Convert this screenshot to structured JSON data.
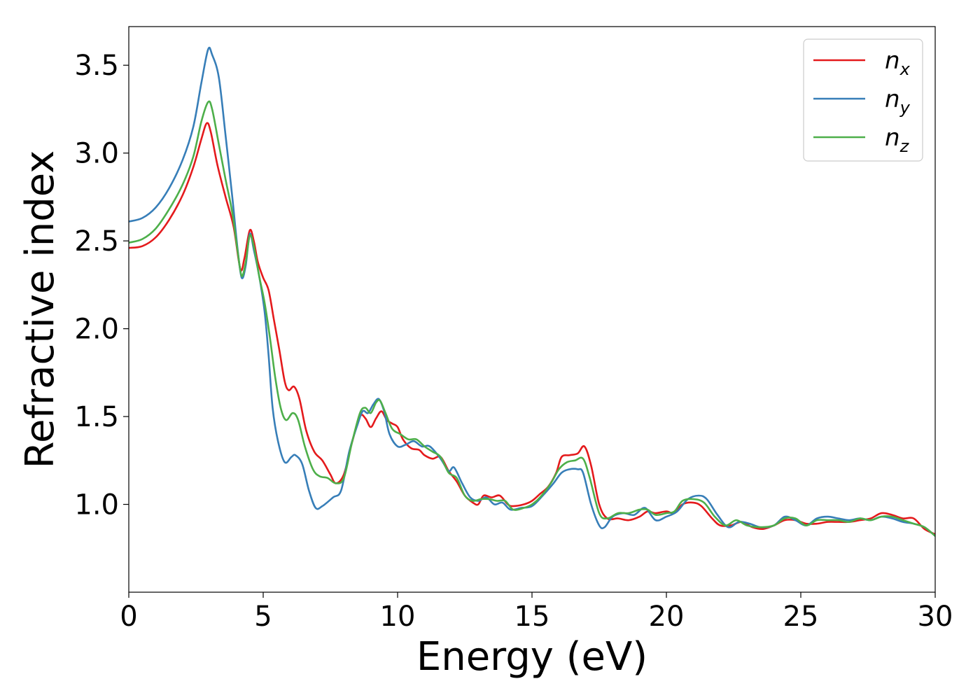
{
  "chart_data": {
    "type": "line",
    "title": "",
    "xlabel": "Energy (eV)",
    "ylabel": "Refractive index",
    "xlim": [
      0,
      30
    ],
    "ylim": [
      0.5,
      3.72
    ],
    "xticks": [
      0,
      5,
      10,
      15,
      20,
      25,
      30
    ],
    "yticks": [
      1.0,
      1.5,
      2.0,
      2.5,
      3.0,
      3.5
    ],
    "grid": false,
    "legend_position": "top-right",
    "series": [
      {
        "name": "n",
        "subscript": "x",
        "color": "#e41a1c",
        "points": [
          [
            0,
            2.46
          ],
          [
            0.5,
            2.47
          ],
          [
            1.0,
            2.52
          ],
          [
            1.5,
            2.62
          ],
          [
            2.0,
            2.76
          ],
          [
            2.4,
            2.92
          ],
          [
            2.7,
            3.08
          ],
          [
            2.9,
            3.17
          ],
          [
            3.05,
            3.12
          ],
          [
            3.3,
            2.93
          ],
          [
            3.6,
            2.75
          ],
          [
            3.9,
            2.58
          ],
          [
            4.15,
            2.34
          ],
          [
            4.3,
            2.4
          ],
          [
            4.5,
            2.56
          ],
          [
            4.65,
            2.5
          ],
          [
            4.8,
            2.38
          ],
          [
            5.0,
            2.29
          ],
          [
            5.2,
            2.22
          ],
          [
            5.4,
            2.05
          ],
          [
            5.6,
            1.88
          ],
          [
            5.8,
            1.7
          ],
          [
            5.95,
            1.65
          ],
          [
            6.15,
            1.67
          ],
          [
            6.35,
            1.6
          ],
          [
            6.6,
            1.42
          ],
          [
            6.9,
            1.3
          ],
          [
            7.2,
            1.25
          ],
          [
            7.5,
            1.17
          ],
          [
            7.7,
            1.12
          ],
          [
            8.0,
            1.17
          ],
          [
            8.3,
            1.35
          ],
          [
            8.6,
            1.5
          ],
          [
            8.8,
            1.49
          ],
          [
            9.0,
            1.44
          ],
          [
            9.2,
            1.49
          ],
          [
            9.4,
            1.53
          ],
          [
            9.6,
            1.48
          ],
          [
            9.8,
            1.46
          ],
          [
            10.0,
            1.44
          ],
          [
            10.2,
            1.37
          ],
          [
            10.5,
            1.32
          ],
          [
            10.8,
            1.31
          ],
          [
            11.0,
            1.28
          ],
          [
            11.3,
            1.26
          ],
          [
            11.6,
            1.27
          ],
          [
            11.9,
            1.19
          ],
          [
            12.2,
            1.13
          ],
          [
            12.5,
            1.05
          ],
          [
            12.8,
            1.01
          ],
          [
            13.0,
            1.0
          ],
          [
            13.2,
            1.05
          ],
          [
            13.5,
            1.04
          ],
          [
            13.8,
            1.05
          ],
          [
            14.1,
            1.0
          ],
          [
            14.3,
            0.99
          ],
          [
            14.7,
            1.0
          ],
          [
            15.0,
            1.02
          ],
          [
            15.3,
            1.06
          ],
          [
            15.6,
            1.1
          ],
          [
            15.9,
            1.18
          ],
          [
            16.1,
            1.27
          ],
          [
            16.4,
            1.28
          ],
          [
            16.7,
            1.29
          ],
          [
            16.95,
            1.33
          ],
          [
            17.2,
            1.22
          ],
          [
            17.5,
            1.0
          ],
          [
            17.8,
            0.92
          ],
          [
            18.2,
            0.92
          ],
          [
            18.6,
            0.91
          ],
          [
            19.0,
            0.93
          ],
          [
            19.3,
            0.96
          ],
          [
            19.6,
            0.95
          ],
          [
            20.0,
            0.96
          ],
          [
            20.3,
            0.95
          ],
          [
            20.6,
            1.0
          ],
          [
            21.0,
            1.01
          ],
          [
            21.3,
            0.99
          ],
          [
            21.7,
            0.92
          ],
          [
            22.0,
            0.88
          ],
          [
            22.4,
            0.88
          ],
          [
            22.8,
            0.9
          ],
          [
            23.2,
            0.87
          ],
          [
            23.6,
            0.86
          ],
          [
            24.0,
            0.88
          ],
          [
            24.4,
            0.91
          ],
          [
            24.8,
            0.91
          ],
          [
            25.2,
            0.89
          ],
          [
            25.6,
            0.89
          ],
          [
            26.0,
            0.9
          ],
          [
            26.4,
            0.9
          ],
          [
            26.8,
            0.9
          ],
          [
            27.2,
            0.91
          ],
          [
            27.6,
            0.92
          ],
          [
            28.0,
            0.95
          ],
          [
            28.4,
            0.94
          ],
          [
            28.8,
            0.92
          ],
          [
            29.2,
            0.92
          ],
          [
            29.6,
            0.86
          ],
          [
            30.0,
            0.83
          ]
        ]
      },
      {
        "name": "n",
        "subscript": "y",
        "color": "#377eb8",
        "points": [
          [
            0,
            2.61
          ],
          [
            0.5,
            2.63
          ],
          [
            1.0,
            2.69
          ],
          [
            1.5,
            2.8
          ],
          [
            2.0,
            2.96
          ],
          [
            2.4,
            3.15
          ],
          [
            2.7,
            3.4
          ],
          [
            2.95,
            3.59
          ],
          [
            3.1,
            3.56
          ],
          [
            3.35,
            3.43
          ],
          [
            3.6,
            3.1
          ],
          [
            3.85,
            2.75
          ],
          [
            4.05,
            2.45
          ],
          [
            4.2,
            2.29
          ],
          [
            4.35,
            2.36
          ],
          [
            4.5,
            2.54
          ],
          [
            4.65,
            2.45
          ],
          [
            4.85,
            2.3
          ],
          [
            5.05,
            2.1
          ],
          [
            5.2,
            1.85
          ],
          [
            5.35,
            1.55
          ],
          [
            5.55,
            1.36
          ],
          [
            5.8,
            1.24
          ],
          [
            6.05,
            1.27
          ],
          [
            6.2,
            1.28
          ],
          [
            6.45,
            1.23
          ],
          [
            6.7,
            1.08
          ],
          [
            6.95,
            0.98
          ],
          [
            7.2,
            0.99
          ],
          [
            7.6,
            1.04
          ],
          [
            7.9,
            1.08
          ],
          [
            8.2,
            1.3
          ],
          [
            8.5,
            1.45
          ],
          [
            8.7,
            1.53
          ],
          [
            8.9,
            1.52
          ],
          [
            9.1,
            1.57
          ],
          [
            9.3,
            1.6
          ],
          [
            9.5,
            1.53
          ],
          [
            9.7,
            1.4
          ],
          [
            10.0,
            1.33
          ],
          [
            10.3,
            1.34
          ],
          [
            10.6,
            1.36
          ],
          [
            10.9,
            1.33
          ],
          [
            11.2,
            1.33
          ],
          [
            11.6,
            1.26
          ],
          [
            11.9,
            1.19
          ],
          [
            12.1,
            1.21
          ],
          [
            12.4,
            1.12
          ],
          [
            12.7,
            1.04
          ],
          [
            13.0,
            1.02
          ],
          [
            13.3,
            1.04
          ],
          [
            13.6,
            1.0
          ],
          [
            13.9,
            1.01
          ],
          [
            14.2,
            0.97
          ],
          [
            14.6,
            0.98
          ],
          [
            15.0,
            0.99
          ],
          [
            15.4,
            1.05
          ],
          [
            15.8,
            1.12
          ],
          [
            16.1,
            1.18
          ],
          [
            16.4,
            1.2
          ],
          [
            16.7,
            1.2
          ],
          [
            16.9,
            1.18
          ],
          [
            17.2,
            1.0
          ],
          [
            17.5,
            0.88
          ],
          [
            17.7,
            0.87
          ],
          [
            18.0,
            0.93
          ],
          [
            18.4,
            0.95
          ],
          [
            18.8,
            0.94
          ],
          [
            19.2,
            0.98
          ],
          [
            19.6,
            0.91
          ],
          [
            20.0,
            0.93
          ],
          [
            20.4,
            0.96
          ],
          [
            20.8,
            1.03
          ],
          [
            21.2,
            1.05
          ],
          [
            21.5,
            1.03
          ],
          [
            21.9,
            0.94
          ],
          [
            22.3,
            0.87
          ],
          [
            22.7,
            0.9
          ],
          [
            23.1,
            0.89
          ],
          [
            23.5,
            0.87
          ],
          [
            24.0,
            0.88
          ],
          [
            24.4,
            0.93
          ],
          [
            24.8,
            0.91
          ],
          [
            25.2,
            0.88
          ],
          [
            25.6,
            0.92
          ],
          [
            26.0,
            0.93
          ],
          [
            26.4,
            0.92
          ],
          [
            26.8,
            0.91
          ],
          [
            27.2,
            0.92
          ],
          [
            27.6,
            0.91
          ],
          [
            28.0,
            0.93
          ],
          [
            28.4,
            0.92
          ],
          [
            28.8,
            0.9
          ],
          [
            29.2,
            0.89
          ],
          [
            29.6,
            0.87
          ],
          [
            30.0,
            0.82
          ]
        ]
      },
      {
        "name": "n",
        "subscript": "z",
        "color": "#4daf4a",
        "points": [
          [
            0,
            2.49
          ],
          [
            0.5,
            2.51
          ],
          [
            1.0,
            2.57
          ],
          [
            1.5,
            2.68
          ],
          [
            2.0,
            2.82
          ],
          [
            2.4,
            2.98
          ],
          [
            2.7,
            3.18
          ],
          [
            2.95,
            3.29
          ],
          [
            3.1,
            3.25
          ],
          [
            3.35,
            3.05
          ],
          [
            3.6,
            2.85
          ],
          [
            3.85,
            2.66
          ],
          [
            4.05,
            2.44
          ],
          [
            4.2,
            2.3
          ],
          [
            4.35,
            2.38
          ],
          [
            4.5,
            2.53
          ],
          [
            4.65,
            2.47
          ],
          [
            4.85,
            2.3
          ],
          [
            5.05,
            2.15
          ],
          [
            5.25,
            1.95
          ],
          [
            5.45,
            1.72
          ],
          [
            5.65,
            1.55
          ],
          [
            5.85,
            1.48
          ],
          [
            6.1,
            1.52
          ],
          [
            6.3,
            1.48
          ],
          [
            6.55,
            1.33
          ],
          [
            6.85,
            1.2
          ],
          [
            7.1,
            1.16
          ],
          [
            7.4,
            1.15
          ],
          [
            7.7,
            1.12
          ],
          [
            8.0,
            1.15
          ],
          [
            8.3,
            1.35
          ],
          [
            8.6,
            1.52
          ],
          [
            8.8,
            1.55
          ],
          [
            9.0,
            1.52
          ],
          [
            9.2,
            1.58
          ],
          [
            9.35,
            1.59
          ],
          [
            9.55,
            1.52
          ],
          [
            9.8,
            1.43
          ],
          [
            10.1,
            1.4
          ],
          [
            10.4,
            1.37
          ],
          [
            10.7,
            1.37
          ],
          [
            11.0,
            1.33
          ],
          [
            11.3,
            1.3
          ],
          [
            11.6,
            1.27
          ],
          [
            11.9,
            1.18
          ],
          [
            12.2,
            1.15
          ],
          [
            12.5,
            1.05
          ],
          [
            12.8,
            1.02
          ],
          [
            13.1,
            1.03
          ],
          [
            13.4,
            1.03
          ],
          [
            13.7,
            1.02
          ],
          [
            14.0,
            1.02
          ],
          [
            14.3,
            0.97
          ],
          [
            14.7,
            0.98
          ],
          [
            15.0,
            1.0
          ],
          [
            15.3,
            1.04
          ],
          [
            15.7,
            1.12
          ],
          [
            16.0,
            1.2
          ],
          [
            16.3,
            1.24
          ],
          [
            16.6,
            1.25
          ],
          [
            16.9,
            1.26
          ],
          [
            17.15,
            1.15
          ],
          [
            17.5,
            0.95
          ],
          [
            17.8,
            0.92
          ],
          [
            18.2,
            0.95
          ],
          [
            18.6,
            0.95
          ],
          [
            19.0,
            0.97
          ],
          [
            19.3,
            0.97
          ],
          [
            19.6,
            0.94
          ],
          [
            20.0,
            0.95
          ],
          [
            20.3,
            0.96
          ],
          [
            20.6,
            1.02
          ],
          [
            21.0,
            1.03
          ],
          [
            21.4,
            1.01
          ],
          [
            21.8,
            0.93
          ],
          [
            22.2,
            0.88
          ],
          [
            22.6,
            0.91
          ],
          [
            23.0,
            0.88
          ],
          [
            23.5,
            0.87
          ],
          [
            24.0,
            0.88
          ],
          [
            24.4,
            0.92
          ],
          [
            24.8,
            0.92
          ],
          [
            25.2,
            0.88
          ],
          [
            25.6,
            0.91
          ],
          [
            26.0,
            0.91
          ],
          [
            26.4,
            0.91
          ],
          [
            26.8,
            0.9
          ],
          [
            27.2,
            0.92
          ],
          [
            27.6,
            0.91
          ],
          [
            28.0,
            0.93
          ],
          [
            28.4,
            0.93
          ],
          [
            28.8,
            0.91
          ],
          [
            29.2,
            0.89
          ],
          [
            29.6,
            0.87
          ],
          [
            30.0,
            0.82
          ]
        ]
      }
    ]
  }
}
